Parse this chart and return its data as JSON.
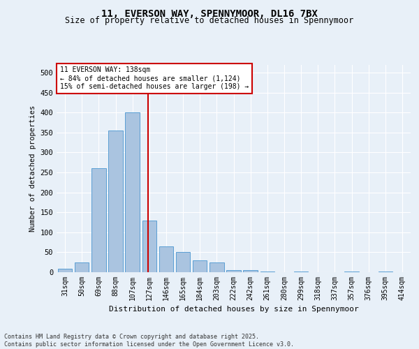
{
  "title1": "11, EVERSON WAY, SPENNYMOOR, DL16 7BX",
  "title2": "Size of property relative to detached houses in Spennymoor",
  "xlabel": "Distribution of detached houses by size in Spennymoor",
  "ylabel": "Number of detached properties",
  "categories": [
    "31sqm",
    "50sqm",
    "69sqm",
    "88sqm",
    "107sqm",
    "127sqm",
    "146sqm",
    "165sqm",
    "184sqm",
    "203sqm",
    "222sqm",
    "242sqm",
    "261sqm",
    "280sqm",
    "299sqm",
    "318sqm",
    "337sqm",
    "357sqm",
    "376sqm",
    "395sqm",
    "414sqm"
  ],
  "values": [
    8,
    25,
    260,
    355,
    400,
    130,
    65,
    50,
    30,
    25,
    5,
    5,
    1,
    0,
    2,
    0,
    0,
    1,
    0,
    1,
    0
  ],
  "bar_color": "#aac4e0",
  "bar_edge_color": "#5a9fd4",
  "vline_x_index": 5,
  "vline_color": "#cc0000",
  "annotation_text": "11 EVERSON WAY: 138sqm\n← 84% of detached houses are smaller (1,124)\n15% of semi-detached houses are larger (198) →",
  "annotation_box_color": "#ffffff",
  "annotation_box_edge": "#cc0000",
  "bg_color": "#e8f0f8",
  "plot_bg_color": "#e8f0f8",
  "footer_text": "Contains HM Land Registry data © Crown copyright and database right 2025.\nContains public sector information licensed under the Open Government Licence v3.0.",
  "ylim": [
    0,
    520
  ],
  "yticks": [
    0,
    50,
    100,
    150,
    200,
    250,
    300,
    350,
    400,
    450,
    500
  ]
}
